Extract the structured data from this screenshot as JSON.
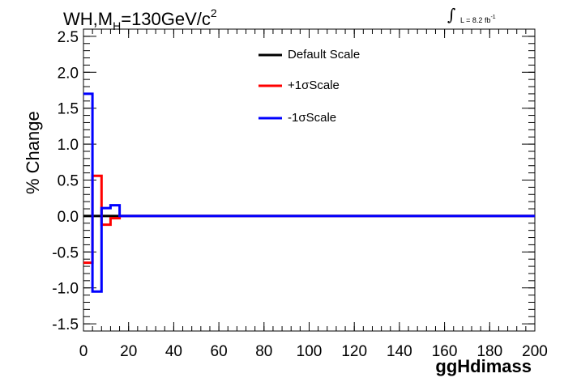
{
  "header": {
    "title_prefix": "WH,M",
    "title_sub": "H",
    "title_main": "=130GeV/c",
    "title_sup": "2",
    "lumi_text": "L = 8.2 fb",
    "lumi_sup": "-1"
  },
  "legend": {
    "default_label": "Default Scale",
    "plus_label": "+1σScale",
    "minus_label": "-1σScale"
  },
  "chart_data": {
    "type": "line",
    "title": "WH,M_H=130GeV/c^2",
    "xlabel": "ggHdimass",
    "ylabel": "% Change",
    "xlim": [
      0,
      200
    ],
    "ylim": [
      -1.6,
      2.6
    ],
    "x_ticks": [
      0,
      20,
      40,
      60,
      80,
      100,
      120,
      140,
      160,
      180,
      200
    ],
    "y_ticks": [
      -1.5,
      -1.0,
      -0.5,
      0.0,
      0.5,
      1.0,
      1.5,
      2.0,
      2.5
    ],
    "y_tick_labels": [
      "-1.5",
      "-1.0",
      "-0.5",
      "0.0",
      "0.5",
      "1.0",
      "1.5",
      "2.0",
      "2.5"
    ],
    "x_tick_labels": [
      "0",
      "20",
      "40",
      "60",
      "80",
      "100",
      "120",
      "140",
      "160",
      "180",
      "200"
    ],
    "bin_edges": [
      0,
      4,
      8,
      12,
      16,
      200
    ],
    "series": [
      {
        "name": "Default Scale",
        "color": "#000000",
        "values": [
          0,
          0,
          0,
          0,
          0
        ]
      },
      {
        "name": "+1σScale",
        "color": "#ff0000",
        "values": [
          -0.65,
          0.56,
          -0.12,
          -0.03,
          0
        ]
      },
      {
        "name": "-1σScale",
        "color": "#0000ff",
        "values": [
          1.7,
          -1.05,
          0.11,
          0.15,
          0
        ]
      }
    ],
    "legend_position": "top-center",
    "grid": false
  }
}
